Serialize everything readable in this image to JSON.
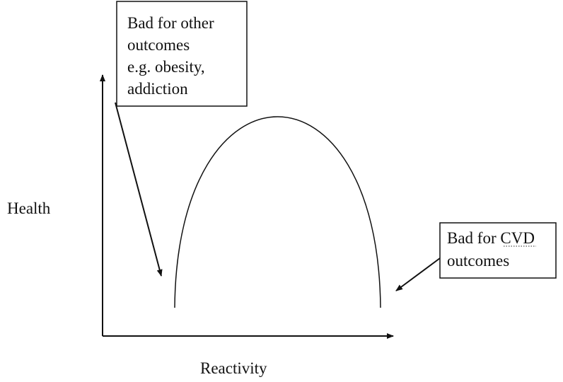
{
  "y_axis_label": "Health",
  "x_axis_label": "Reactivity",
  "callouts": [
    {
      "lines": [
        "Bad for other",
        "outcomes",
        "e.g. obesity,",
        "addiction"
      ]
    },
    {
      "lines": [
        "Bad for CVD",
        "outcomes"
      ]
    }
  ]
}
